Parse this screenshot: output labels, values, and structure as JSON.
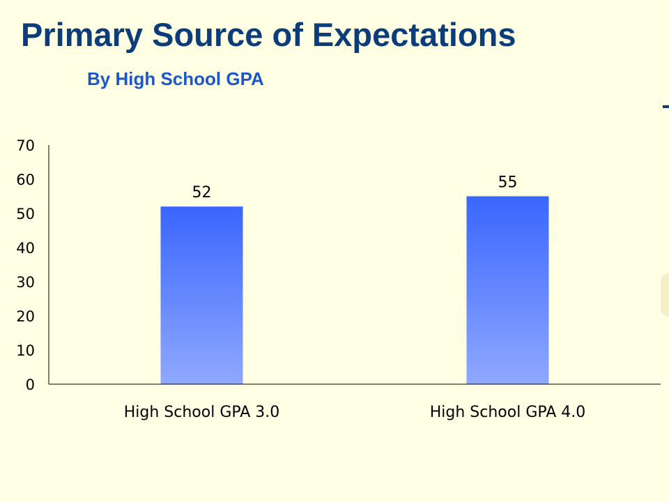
{
  "title": "Primary Source of Expectations",
  "subtitle": "By High School GPA",
  "colors": {
    "background": "#FFFFE3",
    "title": "#0B3D7A",
    "subtitle": "#1A56CC",
    "bar_top": "#3A66FF",
    "bar_bottom": "#8FA8FF",
    "axis": "#000000"
  },
  "chart_data": {
    "type": "bar",
    "categories": [
      "High School GPA 3.0",
      "High School GPA 4.0"
    ],
    "values": [
      52,
      55
    ],
    "data_labels": [
      "52",
      "55"
    ],
    "ylim": [
      0,
      70
    ],
    "yticks": [
      0,
      10,
      20,
      30,
      40,
      50,
      60,
      70
    ],
    "xlabel": "",
    "ylabel": "",
    "grid": false,
    "legend": "none"
  }
}
